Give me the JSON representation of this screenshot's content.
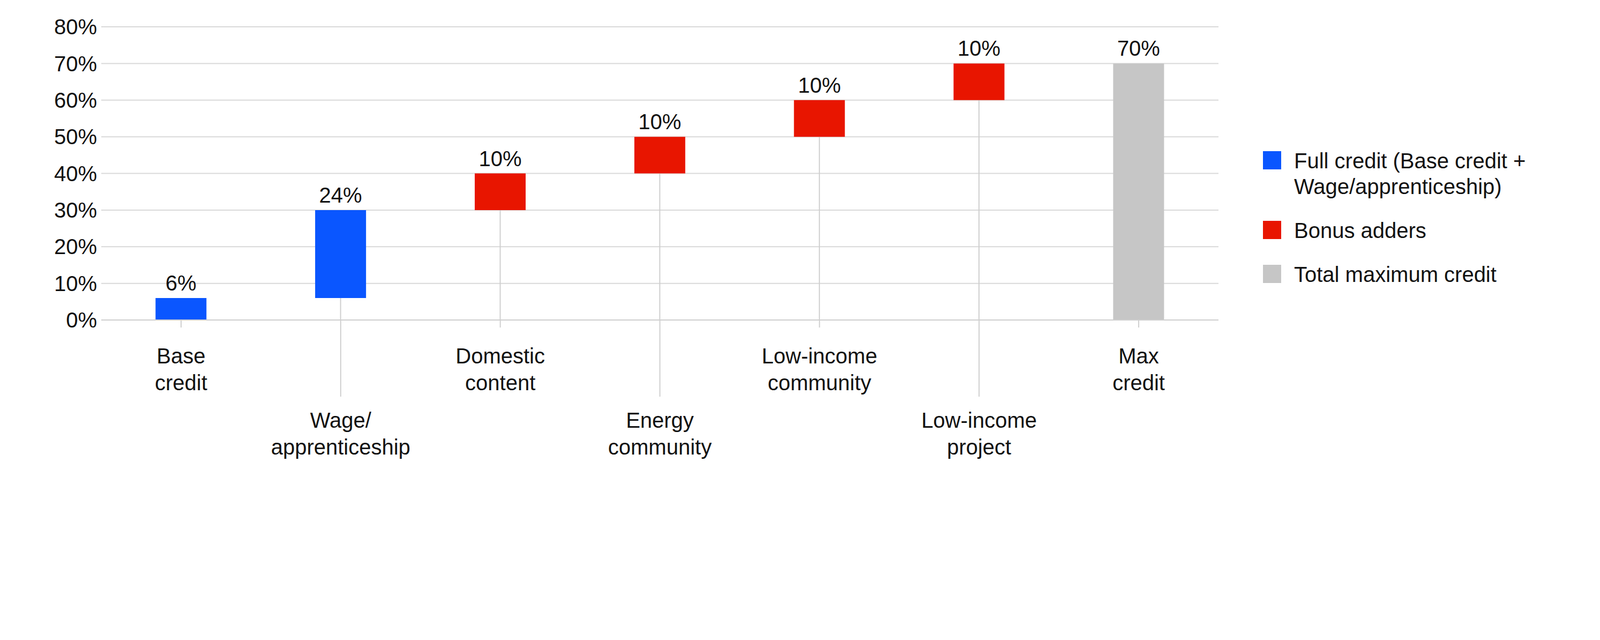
{
  "chart_data": {
    "type": "waterfall",
    "categories": [
      "Base credit",
      "Wage/ apprenticeship",
      "Domestic content",
      "Energy community",
      "Low-income community",
      "Low-income project",
      "Max credit"
    ],
    "series": [
      {
        "name": "Full credit (Base credit + Wage/apprenticeship)",
        "type": "waterfall",
        "color": "#0a56ff",
        "values": [
          6,
          24,
          null,
          null,
          null,
          null,
          null
        ],
        "value_labels": [
          "6%",
          "24%",
          null,
          null,
          null,
          null,
          null
        ]
      },
      {
        "name": "Bonus adders",
        "type": "waterfall",
        "color": "#e81500",
        "values": [
          null,
          null,
          10,
          10,
          10,
          10,
          null
        ],
        "value_labels": [
          null,
          null,
          "10%",
          "10%",
          "10%",
          "10%",
          null
        ]
      },
      {
        "name": "Total maximum credit",
        "type": "bar",
        "color": "#c6c6c6",
        "values": [
          null,
          null,
          null,
          null,
          null,
          null,
          70
        ],
        "value_labels": [
          null,
          null,
          null,
          null,
          null,
          null,
          "70%"
        ]
      }
    ],
    "ylim": [
      0,
      80
    ],
    "yticks": [
      {
        "value": 0,
        "label": "0%"
      },
      {
        "value": 10,
        "label": "10%"
      },
      {
        "value": 20,
        "label": "20%"
      },
      {
        "value": 30,
        "label": "30%"
      },
      {
        "value": 40,
        "label": "40%"
      },
      {
        "value": 50,
        "label": "50%"
      },
      {
        "value": 60,
        "label": "60%"
      },
      {
        "value": 70,
        "label": "70%"
      },
      {
        "value": 80,
        "label": "80%"
      }
    ],
    "grid": true,
    "data_labels": true,
    "legend": "right"
  }
}
